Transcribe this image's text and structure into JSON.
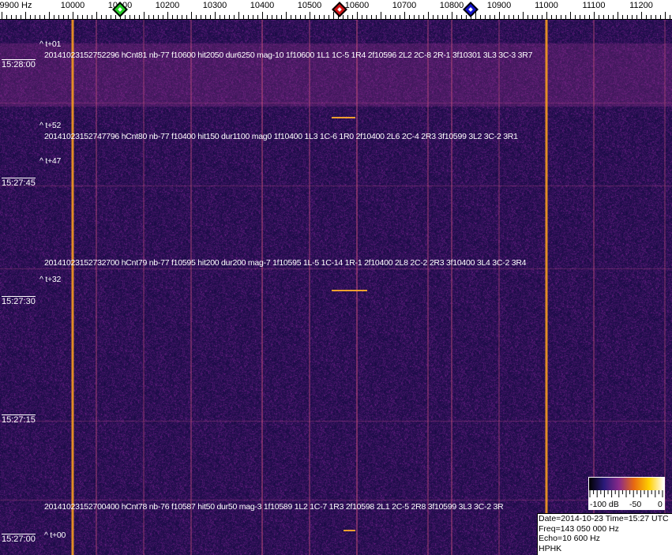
{
  "chart_data": {
    "type": "heatmap",
    "x_unit": "Hz",
    "xlim": [
      9847,
      11265
    ],
    "x_ticks": [
      9900,
      10000,
      10100,
      10200,
      10300,
      10400,
      10500,
      10600,
      10700,
      10800,
      10900,
      11000,
      11100,
      11200
    ],
    "x_tick_labels": [
      "9900 Hz",
      "10000",
      "10100",
      "10200",
      "10300",
      "10400",
      "10500",
      "10600",
      "10700",
      "10800",
      "10900",
      "11000",
      "11100",
      "11200"
    ],
    "y_tick_labels": [
      "15:28:00",
      "15:27:45",
      "15:27:30",
      "15:27:15",
      "15:27:00"
    ],
    "y_range": [
      "15:27:00",
      "15:28:02"
    ],
    "markers": [
      {
        "freq": 10100,
        "color": "#22cc22"
      },
      {
        "freq": 10563,
        "color": "#cc1111"
      },
      {
        "freq": 10840,
        "color": "#1111cc"
      }
    ],
    "carriers": [
      {
        "freq": 10000,
        "level": 1.0
      },
      {
        "freq": 11000,
        "level": 0.95
      },
      {
        "freq": 10600,
        "level": 0.45
      },
      {
        "freq": 10400,
        "level": 0.4
      },
      {
        "freq": 10050,
        "level": 0.3
      },
      {
        "freq": 10250,
        "level": 0.3
      },
      {
        "freq": 10500,
        "level": 0.3
      },
      {
        "freq": 10750,
        "level": 0.3
      },
      {
        "freq": 10800,
        "level": 0.35
      },
      {
        "freq": 11100,
        "level": 0.3
      },
      {
        "freq": 10150,
        "level": 0.2
      },
      {
        "freq": 10900,
        "level": 0.2
      },
      {
        "freq": 11250,
        "level": 0.2
      }
    ],
    "colorbar": {
      "labels": [
        "-100 dB",
        "-50",
        "0"
      ],
      "range_db": [
        -100,
        0
      ],
      "colors": [
        "#000000",
        "#2a1a7a",
        "#8a2a8a",
        "#e86a10",
        "#ffd000",
        "#ffffff"
      ]
    },
    "annotations": {
      "offsets": [
        "^ t+01",
        "^ t+52",
        "^ t+47",
        "^ t+32",
        "^ t+00"
      ],
      "detections": [
        "20141023152752296 hCnt81 nb-77 f10600 hit2050 dur6250 mag-10 1f10600 1L1 1C-5 1R4 2f10596 2L2 2C-8 2R-1 3f10301 3L3 3C-3 3R7",
        "20141023152747796 hCnt80 nb-77 f10400 hit150 dur1100 mag0 1f10400 1L3 1C-6 1R0 2f10400 2L6 2C-4 2R3 3f10599 3L2 3C-2 3R1",
        "20141023152732700 hCnt79 nb-77 f10595 hit200 dur200 mag-7 1f10595 1L-5 1C-14 1R-1 2f10400 2L8 2C-2 2R3 3f10400 3L4 3C-2 3R4",
        "20141023152700400 hCnt78 nb-76 f10587 hit50 dur50 mag-3 1f10589 1L2 1C-7 1R3 2f10598 2L1 2C-5 2R8 3f10599 3L3 3C-2 3R"
      ]
    },
    "info": {
      "line1": "Date=2014-10-23 Time=15:27 UTC",
      "line2": "Freq=143 050 000 Hz",
      "line3": "Echo=10 600 Hz",
      "line4": "HPHK"
    }
  }
}
